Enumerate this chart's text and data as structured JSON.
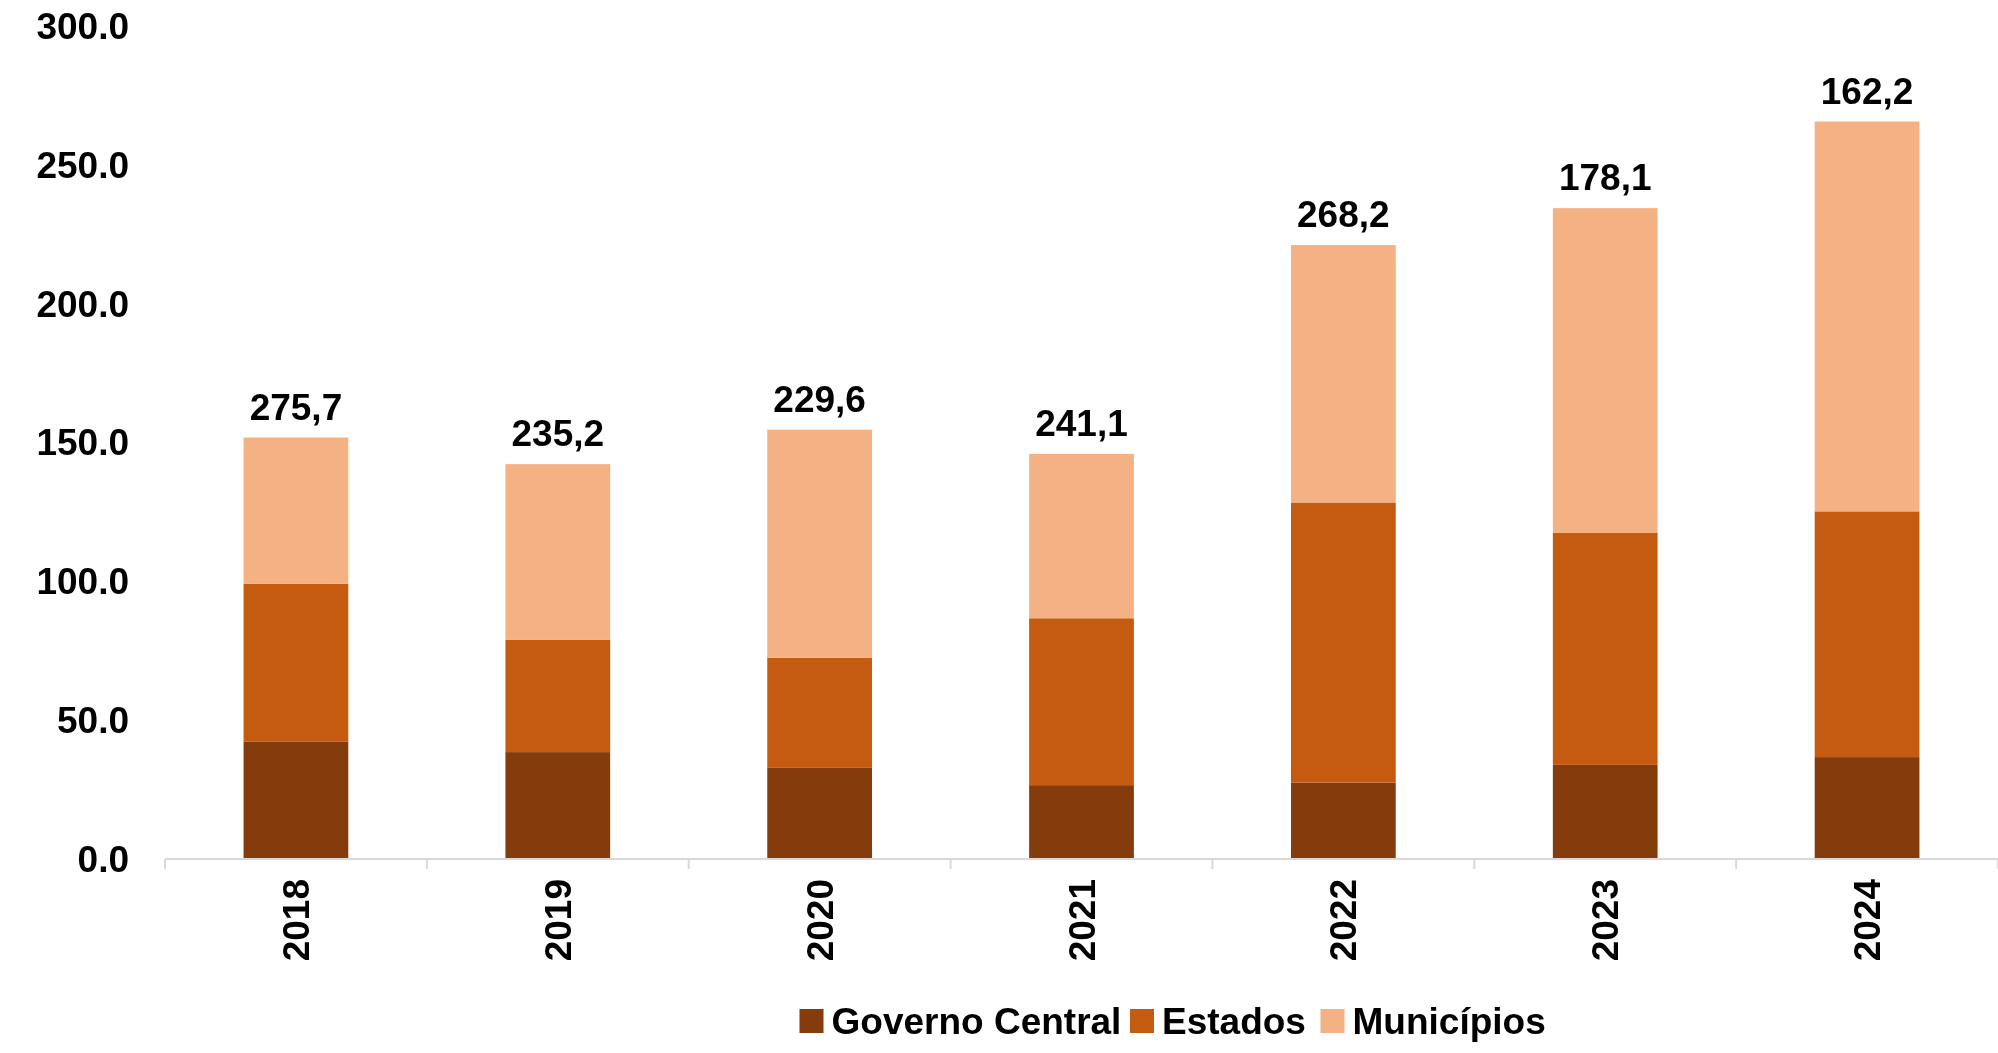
{
  "chart_data": {
    "type": "bar",
    "stacked": true,
    "categories": [
      "2018",
      "2019",
      "2020",
      "2021",
      "2022",
      "2023",
      "2024"
    ],
    "series": [
      {
        "name": "Governo Central",
        "color": "#843c0c",
        "values": [
          42.2,
          38.5,
          33.0,
          26.6,
          27.5,
          33.9,
          36.7
        ]
      },
      {
        "name": "Estados",
        "color": "#c55a11",
        "values": [
          56.9,
          40.4,
          39.5,
          60.1,
          100.9,
          83.5,
          88.5
        ]
      },
      {
        "name": "Municípios",
        "color": "#f4b183",
        "values": [
          52.7,
          63.3,
          82.1,
          59.2,
          92.7,
          117.0,
          140.4
        ]
      }
    ],
    "ylim": [
      0,
      300
    ],
    "yticks": [
      {
        "value": 0,
        "label": "0.0"
      },
      {
        "value": 50,
        "label": "50.0"
      },
      {
        "value": 100,
        "label": "100.0"
      },
      {
        "value": 150,
        "label": "150.0"
      },
      {
        "value": 200,
        "label": "200.0"
      },
      {
        "value": 250,
        "label": "250.0"
      },
      {
        "value": 300,
        "label": "300.0"
      }
    ],
    "annotations": [
      {
        "text": "275,7",
        "x": "2018",
        "y": 151.8
      },
      {
        "text": "235,2",
        "x": "2019",
        "y": 142.2
      },
      {
        "text": "229,6",
        "x": "2020",
        "y": 154.6
      },
      {
        "text": "241,1",
        "x": "2021",
        "y": 145.9
      },
      {
        "text": "268,2",
        "x": "2022",
        "y": 221.1
      },
      {
        "text": "178,1",
        "x": "2023",
        "y": 234.4
      },
      {
        "text": "162,2",
        "x": "2024",
        "y": 265.6
      }
    ],
    "legend": "bottom",
    "grid": false
  }
}
